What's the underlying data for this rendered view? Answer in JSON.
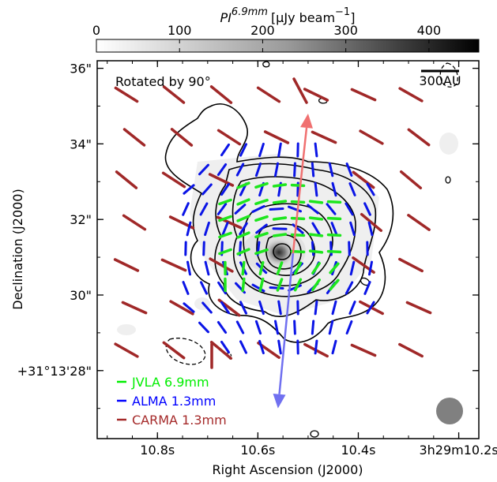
{
  "chart_data": {
    "type": "scatter",
    "colorbar": {
      "title_pre": "PI",
      "title_sup": "6.9mm",
      "title_unit": "[μJy beam",
      "title_unit_sup": "−1",
      "title_close": "]",
      "ticks": [
        "0",
        "100",
        "200",
        "300",
        "400"
      ],
      "tick_values": [
        0,
        100,
        200,
        300,
        400
      ],
      "range": [
        0,
        460
      ],
      "colormap": "white-to-black"
    },
    "xlabel": "Right Ascension (J2000)",
    "ylabel": "Declination (J2000)",
    "x_ticks": [
      "10.8s",
      "10.6s",
      "10.4s",
      "3h29m10.2s"
    ],
    "x_tick_values": [
      10.8,
      10.6,
      10.4,
      10.2
    ],
    "xlim": [
      10.92,
      10.16
    ],
    "y_ticks": [
      "+31°13'28\"",
      "30\"",
      "32\"",
      "34\"",
      "36\""
    ],
    "y_tick_values": [
      28,
      30,
      32,
      34,
      36
    ],
    "ylim": [
      26.2,
      36.2
    ],
    "annotation": "Rotated by 90°",
    "scalebar_label": "300AU",
    "legend_placement": "bottom-left",
    "legend": [
      {
        "label": "JVLA 6.9mm",
        "color": "#00ee00"
      },
      {
        "label": "ALMA 1.3mm",
        "color": "#0000ff"
      },
      {
        "label": "CARMA 1.3mm",
        "color": "#a52a2a"
      }
    ],
    "colors": {
      "jvla": "#1ee61e",
      "alma": "#0a14e6",
      "carma": "#a02828",
      "arrow_red": "#f07070",
      "arrow_blue": "#7070f0",
      "beam": "#808080"
    },
    "arrows": [
      {
        "name": "redshifted outflow",
        "from": [
          10.53,
          31.1
        ],
        "to": [
          10.5,
          34.8
        ]
      },
      {
        "name": "blueshifted outflow",
        "from": [
          10.53,
          31.1
        ],
        "to": [
          10.56,
          27.0
        ]
      }
    ]
  }
}
